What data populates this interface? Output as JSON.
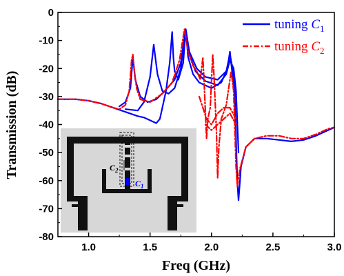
{
  "chart_data": {
    "type": "line",
    "xlabel": "Freq (GHz)",
    "ylabel": "Transmission (dB)",
    "xlim": [
      0.75,
      3.0
    ],
    "ylim": [
      -80,
      0
    ],
    "xticks": [
      "1.0",
      "1.5",
      "2.0",
      "2.5",
      "3.0"
    ],
    "yticks": [
      "0",
      "-10",
      "-20",
      "-30",
      "-40",
      "-50",
      "-60",
      "-70",
      "-80"
    ],
    "grid": false,
    "legend_position": "top-right",
    "legend": {
      "c1": {
        "prefix": "tuning ",
        "symbol": "C",
        "sub": "1"
      },
      "c2": {
        "prefix": "tuning ",
        "symbol": "C",
        "sub": "2"
      }
    },
    "inset_labels": {
      "c2": {
        "symbol": "C",
        "sub": "2"
      },
      "c1": {
        "symbol": "C",
        "sub": "1"
      }
    },
    "series": [
      {
        "key": "c1",
        "color": "#0000ff",
        "dash": "solid",
        "curves": [
          [
            [
              0.75,
              -31
            ],
            [
              0.9,
              -31
            ],
            [
              1.0,
              -31.5
            ],
            [
              1.1,
              -32.5
            ],
            [
              1.2,
              -34
            ],
            [
              1.3,
              -35.5
            ],
            [
              1.4,
              -37
            ],
            [
              1.45,
              -37.5
            ],
            [
              1.5,
              -38.5
            ],
            [
              1.55,
              -39.5
            ],
            [
              1.58,
              -38
            ],
            [
              1.6,
              -34
            ],
            [
              1.63,
              -28
            ],
            [
              1.66,
              -18
            ],
            [
              1.68,
              -7
            ],
            [
              1.69,
              -16
            ],
            [
              1.7,
              -21
            ],
            [
              1.73,
              -24
            ],
            [
              1.77,
              -18
            ],
            [
              1.79,
              -6
            ],
            [
              1.81,
              -16
            ],
            [
              1.85,
              -22
            ],
            [
              1.9,
              -25
            ],
            [
              2.0,
              -27
            ],
            [
              2.08,
              -25
            ],
            [
              2.13,
              -20
            ],
            [
              2.15,
              -14
            ],
            [
              2.17,
              -22
            ],
            [
              2.19,
              -30
            ],
            [
              2.21,
              -60
            ],
            [
              2.22,
              -67
            ],
            [
              2.24,
              -55
            ],
            [
              2.28,
              -48
            ],
            [
              2.35,
              -45
            ],
            [
              2.45,
              -45
            ],
            [
              2.55,
              -45.5
            ],
            [
              2.65,
              -46
            ],
            [
              2.75,
              -45.5
            ],
            [
              2.85,
              -44
            ],
            [
              2.95,
              -42
            ],
            [
              3.0,
              -41
            ]
          ],
          [
            [
              1.3,
              -34.5
            ],
            [
              1.4,
              -35
            ],
            [
              1.45,
              -32
            ],
            [
              1.5,
              -23
            ],
            [
              1.53,
              -11.5
            ],
            [
              1.56,
              -22
            ],
            [
              1.6,
              -28
            ],
            [
              1.65,
              -29
            ],
            [
              1.7,
              -27
            ],
            [
              1.75,
              -20
            ],
            [
              1.79,
              -6
            ],
            [
              1.82,
              -15
            ],
            [
              1.87,
              -21
            ],
            [
              1.95,
              -24.5
            ],
            [
              2.05,
              -26
            ],
            [
              2.12,
              -22
            ],
            [
              2.15,
              -17
            ],
            [
              2.18,
              -20
            ],
            [
              2.2,
              -28
            ],
            [
              2.22,
              -50
            ]
          ],
          [
            [
              1.25,
              -33.5
            ],
            [
              1.3,
              -32
            ],
            [
              1.34,
              -27
            ],
            [
              1.36,
              -16
            ],
            [
              1.38,
              -24
            ],
            [
              1.42,
              -30
            ],
            [
              1.48,
              -32
            ],
            [
              1.55,
              -31
            ],
            [
              1.62,
              -28
            ],
            [
              1.7,
              -24
            ],
            [
              1.75,
              -18
            ],
            [
              1.79,
              -6
            ],
            [
              1.82,
              -14
            ],
            [
              1.88,
              -20
            ],
            [
              1.95,
              -23
            ],
            [
              2.05,
              -24
            ],
            [
              2.12,
              -21
            ],
            [
              2.15,
              -15
            ],
            [
              2.18,
              -22
            ],
            [
              2.2,
              -30
            ]
          ]
        ]
      },
      {
        "key": "c2",
        "color": "#ff0000",
        "dash": "dashdot",
        "curves": [
          [
            [
              0.75,
              -31
            ],
            [
              0.9,
              -31
            ],
            [
              1.0,
              -31.5
            ],
            [
              1.1,
              -32.5
            ],
            [
              1.2,
              -34
            ],
            [
              1.25,
              -34.5
            ],
            [
              1.3,
              -33
            ],
            [
              1.33,
              -28
            ],
            [
              1.35,
              -17
            ],
            [
              1.36,
              -15
            ],
            [
              1.37,
              -20
            ],
            [
              1.39,
              -27
            ],
            [
              1.42,
              -31
            ],
            [
              1.5,
              -32
            ],
            [
              1.6,
              -29
            ],
            [
              1.68,
              -25
            ],
            [
              1.74,
              -17
            ],
            [
              1.78,
              -6
            ],
            [
              1.81,
              -14
            ],
            [
              1.85,
              -19
            ],
            [
              1.88,
              -21
            ],
            [
              1.91,
              -24
            ],
            [
              1.93,
              -16
            ],
            [
              1.94,
              -25
            ],
            [
              1.96,
              -45
            ],
            [
              1.97,
              -38
            ],
            [
              1.99,
              -34
            ],
            [
              2.01,
              -15
            ],
            [
              2.02,
              -22
            ],
            [
              2.04,
              -42
            ],
            [
              2.05,
              -59
            ],
            [
              2.06,
              -48
            ],
            [
              2.08,
              -38
            ],
            [
              2.12,
              -33
            ],
            [
              2.16,
              -21
            ],
            [
              2.18,
              -28
            ],
            [
              2.2,
              -55
            ],
            [
              2.21,
              -62
            ],
            [
              2.23,
              -56
            ],
            [
              2.28,
              -48
            ],
            [
              2.35,
              -45
            ],
            [
              2.45,
              -44
            ],
            [
              2.55,
              -44
            ],
            [
              2.65,
              -45
            ],
            [
              2.75,
              -45
            ],
            [
              2.85,
              -43.5
            ],
            [
              2.95,
              -41.5
            ],
            [
              3.0,
              -41
            ]
          ],
          [
            [
              1.9,
              -30
            ],
            [
              1.96,
              -38
            ],
            [
              2.0,
              -40
            ],
            [
              2.05,
              -36
            ],
            [
              2.1,
              -34
            ],
            [
              2.15,
              -34
            ],
            [
              2.2,
              -38
            ]
          ],
          [
            [
              1.95,
              -40
            ],
            [
              2.0,
              -42
            ],
            [
              2.05,
              -40
            ],
            [
              2.1,
              -38
            ],
            [
              2.15,
              -36
            ],
            [
              2.2,
              -40
            ]
          ]
        ]
      }
    ]
  }
}
